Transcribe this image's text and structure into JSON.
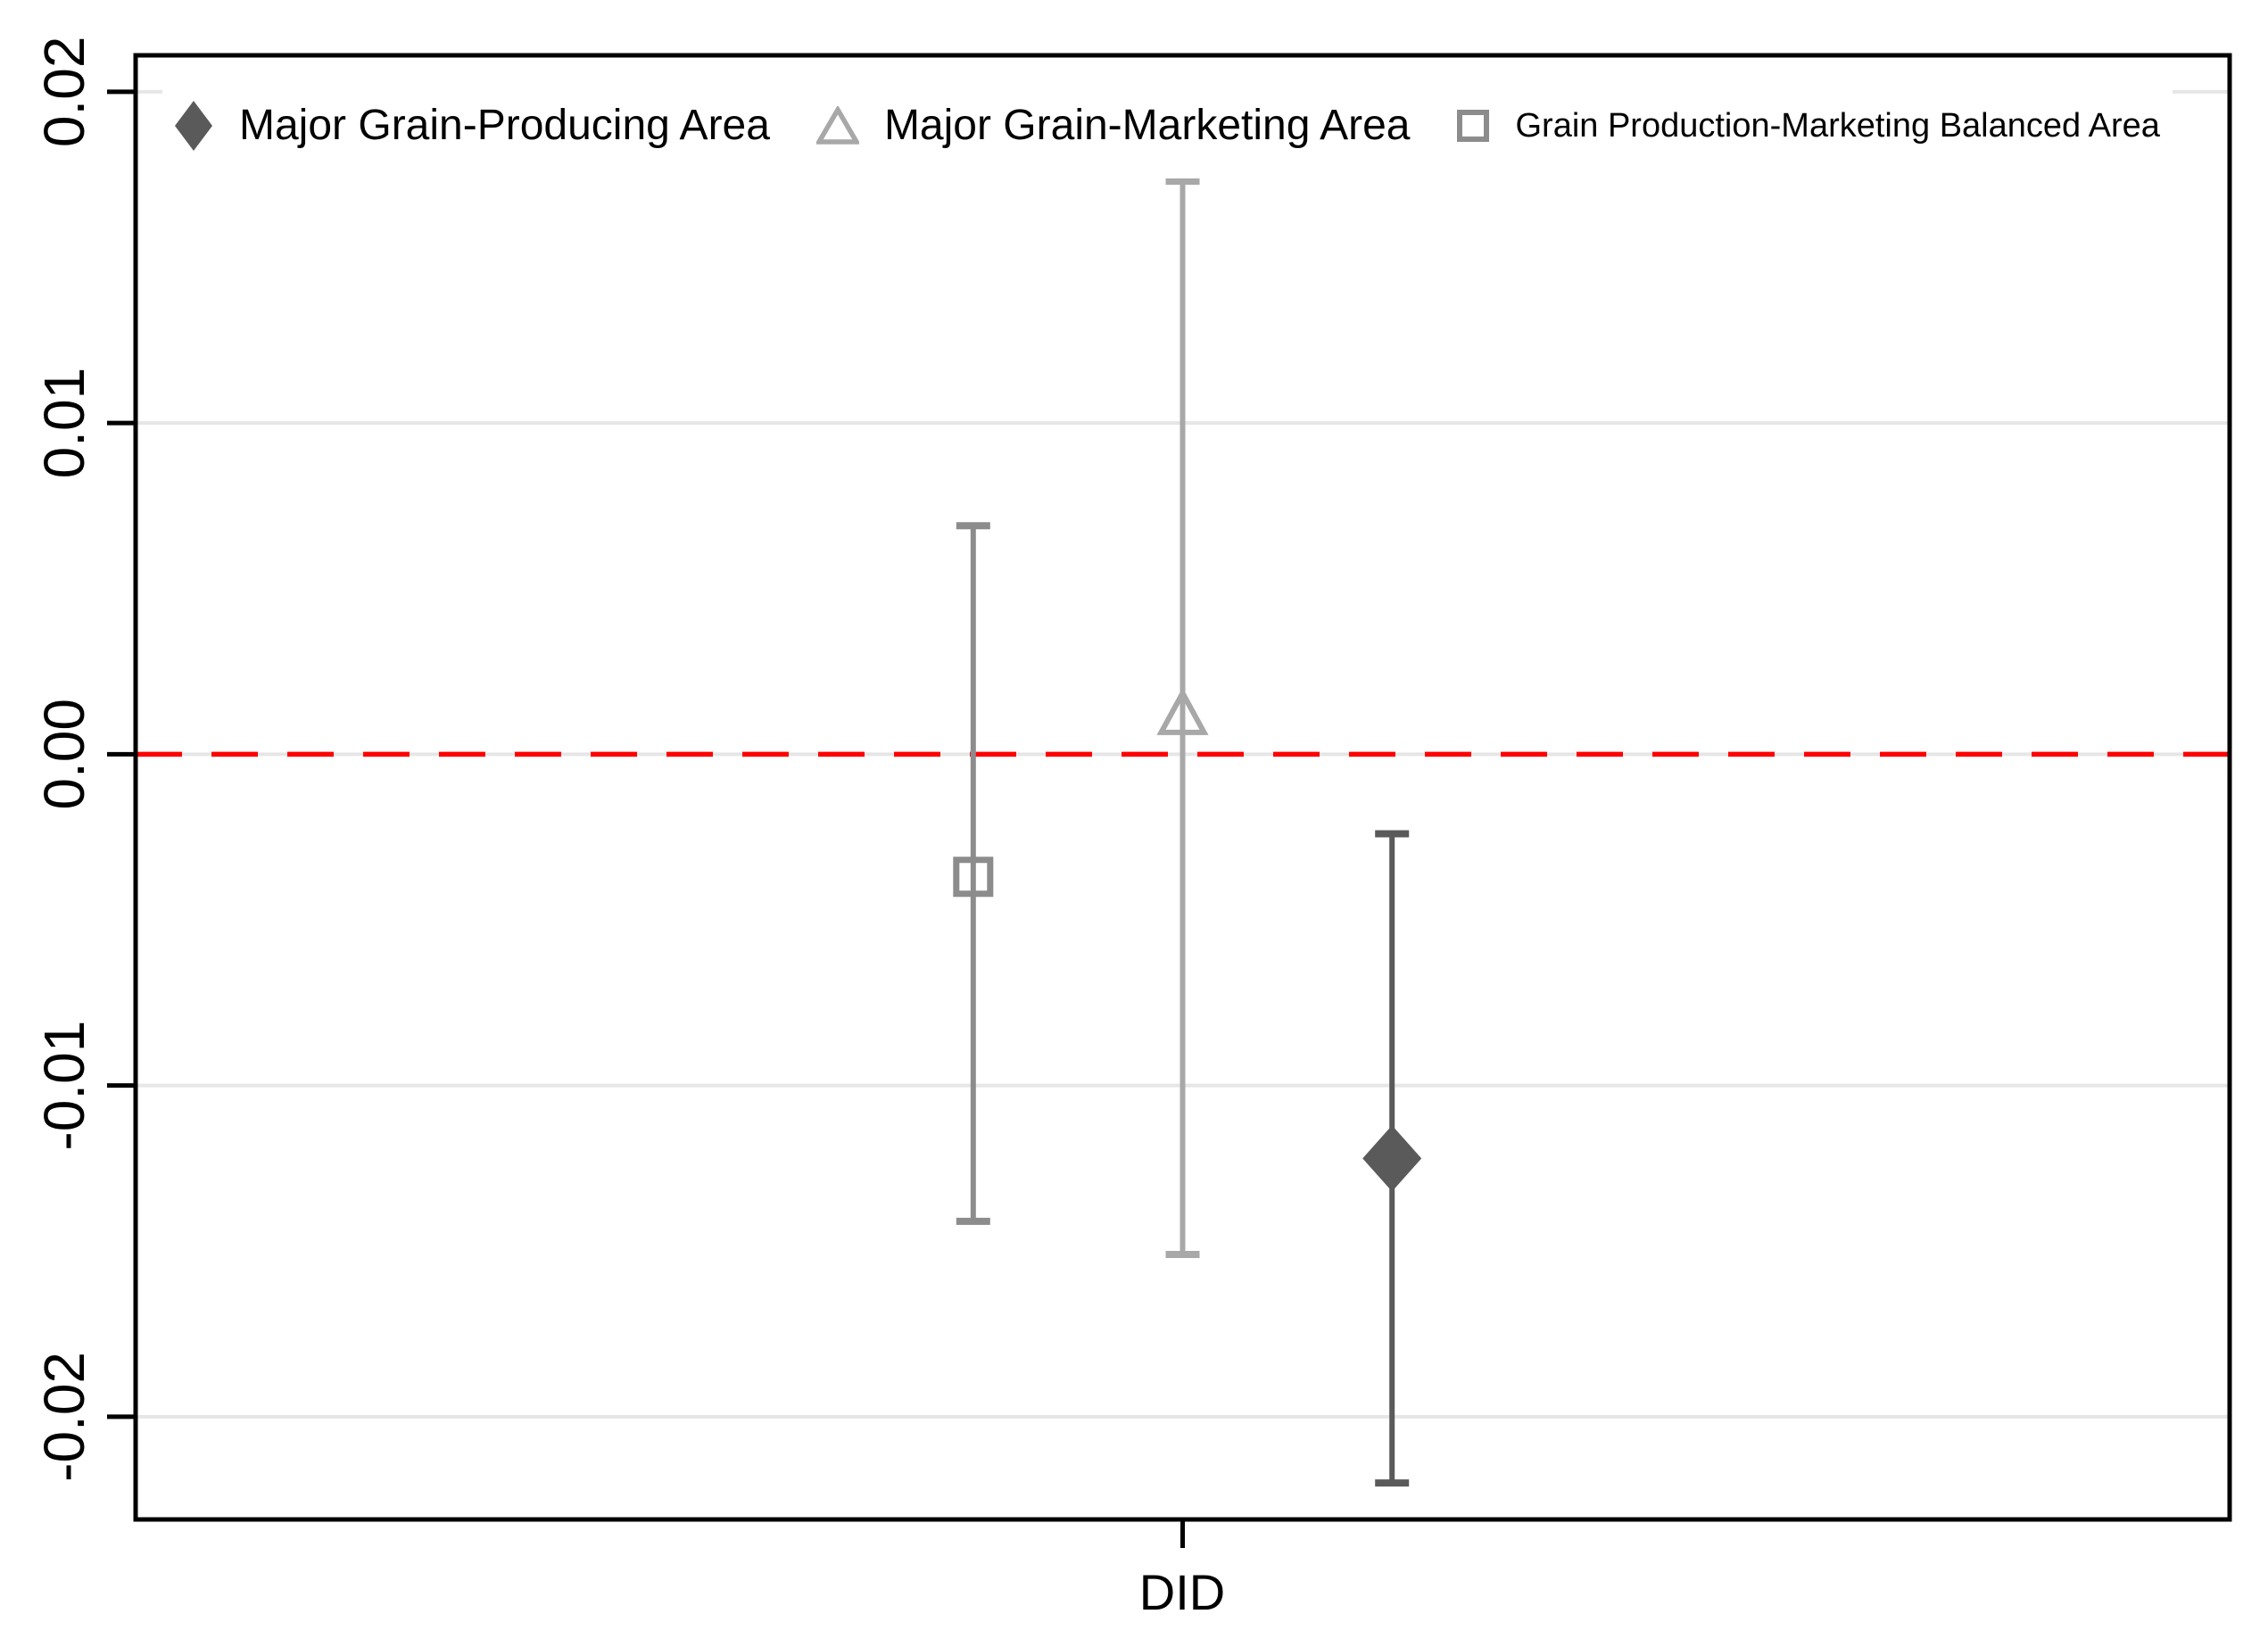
{
  "chart_data": {
    "type": "scatter",
    "subtype": "coefficient-plot-with-error-bars",
    "title": "",
    "xlabel": "DID",
    "ylabel": "",
    "ylim": [
      -0.0231,
      0.0211
    ],
    "grid": true,
    "legend_position": "top-inside",
    "x_categories": [
      "DID"
    ],
    "yticks": [
      {
        "value": 0.02,
        "label": "0.02"
      },
      {
        "value": 0.01,
        "label": "0.01"
      },
      {
        "value": 0.0,
        "label": "0.00"
      },
      {
        "value": -0.01,
        "label": "-0.01"
      },
      {
        "value": -0.02,
        "label": "-0.02"
      }
    ],
    "zero_line": {
      "value": 0,
      "color": "#ff0000",
      "style": "dashed"
    },
    "series": [
      {
        "name": "Major Grain-Producing Area",
        "marker": "diamond-filled",
        "color": "#5a5a5a",
        "x_fraction": 0.6,
        "estimate": -0.0122,
        "ci_low": -0.022,
        "ci_high": -0.0024
      },
      {
        "name": "Major Grain-Marketing Area",
        "marker": "triangle-open",
        "color": "#a8a8a8",
        "x_fraction": 0.5,
        "estimate": 0.0012,
        "ci_low": -0.0151,
        "ci_high": 0.0173
      },
      {
        "name": "Grain Production-Marketing Balanced Area",
        "marker": "square-open",
        "color": "#8c8c8c",
        "x_fraction": 0.4,
        "estimate": -0.0037,
        "ci_low": -0.0141,
        "ci_high": 0.0069
      }
    ],
    "colors": {
      "grid": "#e6e6e6",
      "axis": "#000000",
      "text": "#000000",
      "background": "#ffffff"
    }
  }
}
